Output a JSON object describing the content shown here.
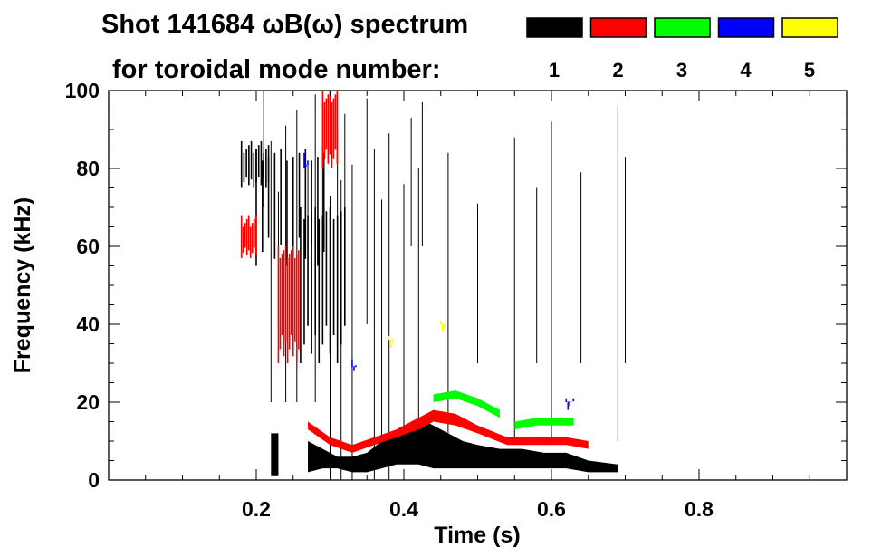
{
  "title_line1": "Shot 141684 ωB(ω) spectrum",
  "title_line2": "for toroidal mode number:",
  "legend": [
    {
      "label": "1",
      "color": "#000000"
    },
    {
      "label": "2",
      "color": "#ff0000"
    },
    {
      "label": "3",
      "color": "#00ff00"
    },
    {
      "label": "4",
      "color": "#0000ff"
    },
    {
      "label": "5",
      "color": "#ffff00"
    }
  ],
  "chart_data": {
    "type": "heatmap",
    "xlabel": "Time (s)",
    "ylabel": "Frequency (kHz)",
    "xlim": [
      0.0,
      1.0
    ],
    "ylim": [
      0,
      100
    ],
    "x_ticks": [
      0.2,
      0.4,
      0.6,
      0.8
    ],
    "x_tick_labels": [
      "0.2",
      "0.4",
      "0.6",
      "0.8"
    ],
    "y_ticks": [
      0,
      20,
      40,
      60,
      80,
      100
    ],
    "y_tick_labels": [
      "0",
      "20",
      "40",
      "60",
      "80",
      "100"
    ],
    "grid": false,
    "legend_position": "top",
    "series": [
      {
        "mode": 1,
        "color": "#000000",
        "bands": [
          {
            "t": [
              0.27,
              0.29,
              0.31,
              0.33,
              0.35,
              0.37,
              0.39,
              0.41,
              0.42,
              0.44,
              0.46,
              0.48,
              0.5,
              0.53,
              0.56,
              0.59,
              0.62,
              0.65,
              0.69
            ],
            "lo": [
              2,
              3,
              3,
              2,
              2,
              3,
              4,
              4,
              4,
              3,
              3,
              3,
              3,
              3,
              3,
              3,
              3,
              2,
              2
            ],
            "hi": [
              10,
              8,
              6,
              6,
              7,
              10,
              13,
              15,
              16,
              14,
              12,
              10,
              9,
              8,
              8,
              7,
              7,
              5,
              4
            ]
          },
          {
            "t": [
              0.22,
              0.23
            ],
            "lo": [
              1,
              1
            ],
            "hi": [
              12,
              12
            ]
          }
        ]
      },
      {
        "mode": 1,
        "color": "#000000",
        "patches": [
          {
            "t0": 0.18,
            "t1": 0.22,
            "f0": 75,
            "f1": 87
          },
          {
            "t0": 0.2,
            "t1": 0.3,
            "f0": 55,
            "f1": 85
          },
          {
            "t0": 0.26,
            "t1": 0.32,
            "f0": 30,
            "f1": 70
          }
        ]
      },
      {
        "mode": 2,
        "color": "#ff0000",
        "bands": [
          {
            "t": [
              0.27,
              0.3,
              0.33,
              0.36,
              0.39,
              0.42,
              0.44,
              0.47,
              0.5,
              0.54,
              0.58,
              0.62,
              0.65
            ],
            "lo": [
              13,
              9,
              7,
              9,
              11,
              13,
              15,
              14,
              12,
              9,
              9,
              9,
              8
            ],
            "hi": [
              15,
              11,
              9,
              11,
              13,
              16,
              18,
              17,
              14,
              11,
              11,
              11,
              10
            ]
          }
        ]
      },
      {
        "mode": 2,
        "color": "#ff0000",
        "patches": [
          {
            "t0": 0.18,
            "t1": 0.2,
            "f0": 57,
            "f1": 68
          },
          {
            "t0": 0.23,
            "t1": 0.26,
            "f0": 30,
            "f1": 60
          },
          {
            "t0": 0.29,
            "t1": 0.31,
            "f0": 80,
            "f1": 100
          }
        ]
      },
      {
        "mode": 3,
        "color": "#00ff00",
        "bands": [
          {
            "t": [
              0.44,
              0.47,
              0.5,
              0.53
            ],
            "lo": [
              20,
              21,
              19,
              16
            ],
            "hi": [
              22,
              23,
              21,
              18
            ]
          },
          {
            "t": [
              0.55,
              0.58,
              0.61,
              0.63
            ],
            "lo": [
              13,
              14,
              14,
              14
            ],
            "hi": [
              15,
              16,
              16,
              16
            ]
          }
        ]
      },
      {
        "mode": 4,
        "color": "#0000ff",
        "patches": [
          {
            "t0": 0.265,
            "t1": 0.27,
            "f0": 80,
            "f1": 84
          },
          {
            "t0": 0.62,
            "t1": 0.63,
            "f0": 20,
            "f1": 21
          },
          {
            "t0": 0.33,
            "t1": 0.335,
            "f0": 29,
            "f1": 31
          }
        ]
      },
      {
        "mode": 5,
        "color": "#ffff00",
        "patches": [
          {
            "t0": 0.38,
            "t1": 0.385,
            "f0": 36,
            "f1": 37
          },
          {
            "t0": 0.45,
            "t1": 0.455,
            "f0": 40,
            "f1": 41
          }
        ]
      }
    ],
    "streaks": [
      0.21,
      0.22,
      0.23,
      0.24,
      0.25,
      0.255,
      0.27,
      0.28,
      0.29,
      0.3,
      0.31,
      0.315,
      0.32,
      0.33,
      0.35,
      0.36,
      0.37,
      0.38,
      0.4,
      0.41,
      0.42,
      0.425,
      0.46,
      0.5,
      0.55,
      0.58,
      0.6,
      0.64,
      0.69,
      0.7
    ]
  }
}
